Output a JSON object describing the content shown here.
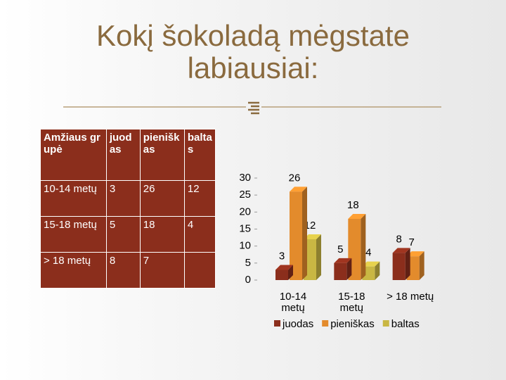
{
  "title": "Kokį šokoladą mėgstate labiausiai:",
  "table": {
    "header": [
      "Amžiaus grupė",
      "juodas",
      "pieniškas",
      "baltas"
    ],
    "rows": [
      [
        "10-14 metų",
        "3",
        "26",
        "12"
      ],
      [
        "15-18 metų",
        "5",
        "18",
        "4"
      ],
      [
        "> 18 metų",
        "8",
        "7"
      ]
    ]
  },
  "chart_data": {
    "type": "bar",
    "categories": [
      "10-14 metų",
      "15-18 metų",
      "> 18 metų"
    ],
    "series": [
      {
        "name": "juodas",
        "color": "#8b2e1c",
        "values": [
          3,
          5,
          8
        ]
      },
      {
        "name": "pieniškas",
        "color": "#e38b2c",
        "values": [
          26,
          18,
          7
        ]
      },
      {
        "name": "baltas",
        "color": "#c9b743",
        "values": [
          12,
          4,
          null
        ]
      }
    ],
    "ylim": [
      0,
      30
    ],
    "yticks": [
      0,
      5,
      10,
      15,
      20,
      25,
      30
    ]
  }
}
